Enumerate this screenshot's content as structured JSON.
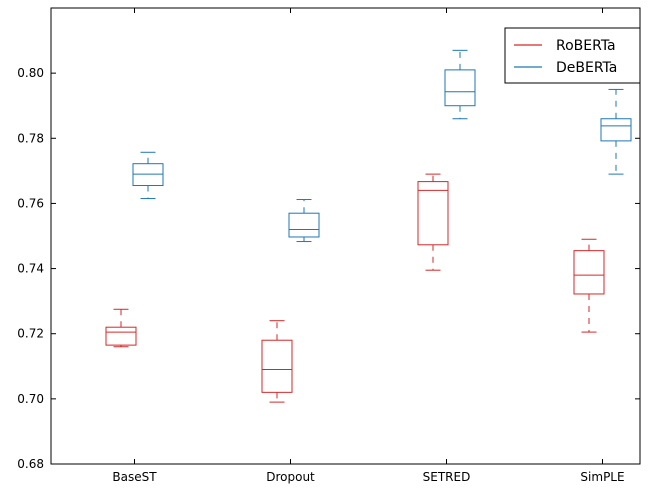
{
  "chart_data": {
    "type": "box",
    "title": "",
    "xlabel": "",
    "ylabel": "",
    "categories": [
      "BaseST",
      "Dropout",
      "SETRED",
      "SimPLE"
    ],
    "ylim": [
      0.68,
      0.82
    ],
    "yticks": [
      0.68,
      0.7,
      0.72,
      0.74,
      0.76,
      0.78,
      0.8
    ],
    "ytick_labels": [
      "0.68",
      "0.70",
      "0.72",
      "0.74",
      "0.76",
      "0.78",
      "0.80"
    ],
    "legend_position": "top-right",
    "series": [
      {
        "name": "RoBERTa",
        "color": "#d62728",
        "boxes": [
          {
            "category": "BaseST",
            "whislo": 0.716,
            "q1": 0.7165,
            "median": 0.7205,
            "q3": 0.722,
            "whishi": 0.7275
          },
          {
            "category": "Dropout",
            "whislo": 0.699,
            "q1": 0.702,
            "median": 0.709,
            "q3": 0.718,
            "whishi": 0.724
          },
          {
            "category": "SETRED",
            "whislo": 0.7395,
            "q1": 0.7473,
            "median": 0.764,
            "q3": 0.7667,
            "whishi": 0.769
          },
          {
            "category": "SimPLE",
            "whislo": 0.7205,
            "q1": 0.7322,
            "median": 0.738,
            "q3": 0.7455,
            "whishi": 0.749
          }
        ]
      },
      {
        "name": "DeBERTa",
        "color": "#1f77b4",
        "boxes": [
          {
            "category": "BaseST",
            "whislo": 0.7615,
            "q1": 0.7655,
            "median": 0.769,
            "q3": 0.7722,
            "whishi": 0.7757
          },
          {
            "category": "Dropout",
            "whislo": 0.7483,
            "q1": 0.7497,
            "median": 0.752,
            "q3": 0.757,
            "whishi": 0.7612
          },
          {
            "category": "SETRED",
            "whislo": 0.786,
            "q1": 0.79,
            "median": 0.7943,
            "q3": 0.801,
            "whishi": 0.807
          },
          {
            "category": "SimPLE",
            "whislo": 0.769,
            "q1": 0.7792,
            "median": 0.7838,
            "q3": 0.786,
            "whishi": 0.795
          }
        ]
      }
    ]
  }
}
